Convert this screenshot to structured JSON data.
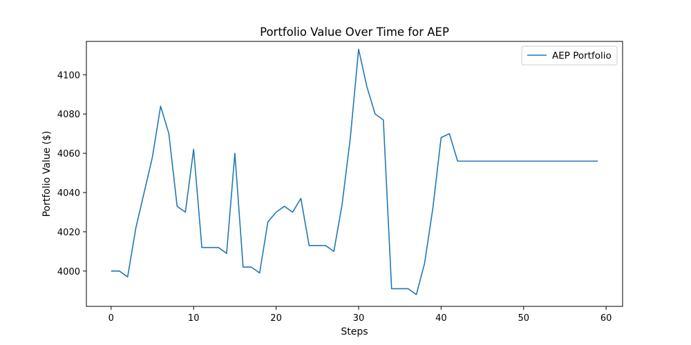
{
  "chart_data": {
    "type": "line",
    "title": "Portfolio Value Over Time for AEP",
    "xlabel": "Steps",
    "ylabel": "Portfolio Value ($)",
    "xlim": [
      -3,
      62
    ],
    "ylim": [
      3982,
      4117
    ],
    "xticks": [
      0,
      10,
      20,
      30,
      40,
      50,
      60
    ],
    "yticks": [
      4000,
      4020,
      4040,
      4060,
      4080,
      4100
    ],
    "grid": false,
    "legend_position": "top-right",
    "series": [
      {
        "name": "AEP Portfolio",
        "color": "#1f77b4",
        "x": [
          0,
          1,
          2,
          3,
          4,
          5,
          6,
          7,
          8,
          9,
          10,
          11,
          12,
          13,
          14,
          15,
          16,
          17,
          18,
          19,
          20,
          21,
          22,
          23,
          24,
          25,
          26,
          27,
          28,
          29,
          30,
          31,
          32,
          33,
          34,
          35,
          36,
          37,
          38,
          39,
          40,
          41,
          42,
          43,
          44,
          45,
          46,
          47,
          48,
          49,
          50,
          51,
          52,
          53,
          54,
          55,
          56,
          57,
          58,
          59
        ],
        "y": [
          4000,
          4000,
          3997,
          4022,
          4040,
          4058,
          4084,
          4070,
          4033,
          4030,
          4062,
          4012,
          4012,
          4012,
          4009,
          4060,
          4002,
          4002,
          3999,
          4025,
          4030,
          4033,
          4030,
          4037,
          4013,
          4013,
          4013,
          4010,
          4034,
          4068,
          4113,
          4094,
          4080,
          4077,
          3991,
          3991,
          3991,
          3988,
          4004,
          4032,
          4068,
          4070,
          4056,
          4056,
          4056,
          4056,
          4056,
          4056,
          4056,
          4056,
          4056,
          4056,
          4056,
          4056,
          4056,
          4056,
          4056,
          4056,
          4056,
          4056
        ]
      }
    ]
  }
}
